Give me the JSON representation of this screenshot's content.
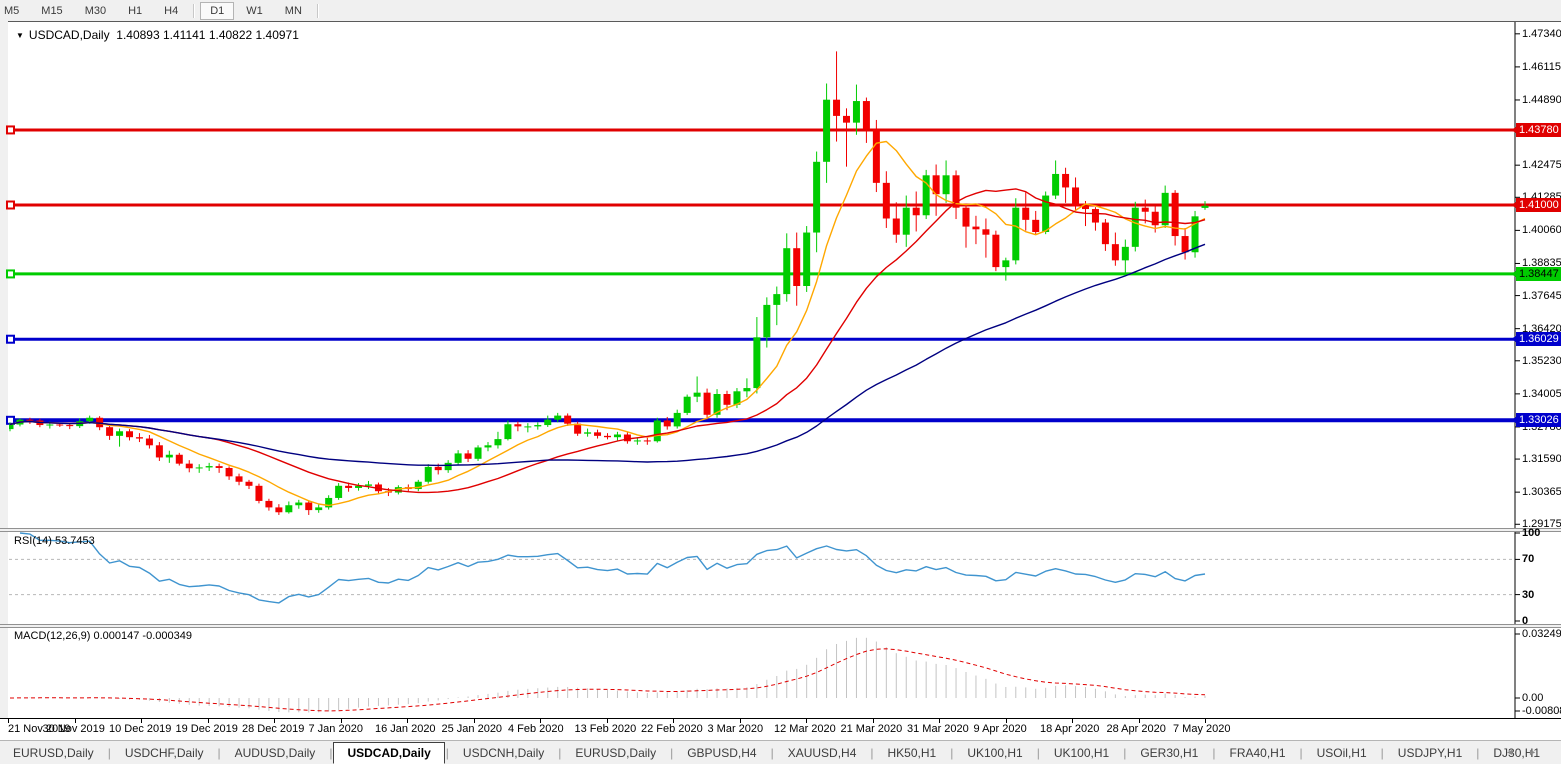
{
  "toolbar": {
    "timeframes": [
      {
        "label": "M5",
        "active": false
      },
      {
        "label": "M15",
        "active": false
      },
      {
        "label": "M30",
        "active": false
      },
      {
        "label": "H1",
        "active": false
      },
      {
        "label": "H4",
        "active": false
      },
      {
        "label": "D1",
        "active": true
      },
      {
        "label": "W1",
        "active": false
      },
      {
        "label": "MN",
        "active": false
      }
    ]
  },
  "chart": {
    "title_symbol": "USDCAD,Daily",
    "title_ohlc": "1.40893 1.41141 1.40822 1.40971",
    "dropdown_icon": "▼",
    "candle_up_color": "#00cc00",
    "candle_down_color": "#f20000",
    "ma_fast_color": "#ffa800",
    "ma_mid_color": "#e00000",
    "ma_slow_color": "#000080"
  },
  "price_axis": {
    "ticks": [
      "1.47340",
      "1.46115",
      "1.44890",
      "1.42475",
      "1.41285",
      "1.40060",
      "1.38835",
      "1.37645",
      "1.36420",
      "1.35230",
      "1.34005",
      "1.32780",
      "1.31590",
      "1.30365",
      "1.29175"
    ],
    "badges": [
      {
        "text": "1.43780",
        "value": 1.4378,
        "bg": "#e00000",
        "fg": "#ffffff"
      },
      {
        "text": "1.41000",
        "value": 1.41,
        "bg": "#e00000",
        "fg": "#ffffff"
      },
      {
        "text": "1.38447",
        "value": 1.38447,
        "bg": "#00cc00",
        "fg": "#000000"
      },
      {
        "text": "1.36029",
        "value": 1.36029,
        "bg": "#0000cc",
        "fg": "#ffffff"
      },
      {
        "text": "1.33026",
        "value": 1.33026,
        "bg": "#0000cc",
        "fg": "#ffffff"
      }
    ]
  },
  "rsi_pane": {
    "label": "RSI(14) 53.7453",
    "level_labels": [
      "100",
      "70",
      "30",
      "0"
    ],
    "line_color": "#3f94cf"
  },
  "macd_pane": {
    "label": "MACD(12,26,9) 0.000147 -0.000349",
    "axis_labels": [
      "0.032493",
      "0.00",
      "-0.00808"
    ],
    "bar_color": "#c4c4c4",
    "signal_color": "#e00000"
  },
  "date_axis": {
    "labels": [
      "21 Nov 2019",
      "30 Nov 2019",
      "10 Dec 2019",
      "19 Dec 2019",
      "28 Dec 2019",
      "7 Jan 2020",
      "16 Jan 2020",
      "25 Jan 2020",
      "4 Feb 2020",
      "13 Feb 2020",
      "22 Feb 2020",
      "3 Mar 2020",
      "12 Mar 2020",
      "21 Mar 2020",
      "31 Mar 2020",
      "9 Apr 2020",
      "18 Apr 2020",
      "28 Apr 2020",
      "7 May 2020"
    ]
  },
  "tabs": {
    "items": [
      "EURUSD,Daily",
      "USDCHF,Daily",
      "AUDUSD,Daily",
      "USDCAD,Daily",
      "USDCNH,Daily",
      "EURUSD,Daily",
      "GBPUSD,H4",
      "XAUUSD,H4",
      "HK50,H1",
      "UK100,H1",
      "UK100,H1",
      "GER30,H1",
      "FRA40,H1",
      "USOil,H1",
      "USDJPY,H1",
      "DJ30,H1"
    ],
    "active_index": 3,
    "scroll_left_icon": "◄",
    "scroll_right_icon": "►"
  },
  "chart_data": {
    "type": "candlestick",
    "symbol": "USDCAD",
    "timeframe": "Daily",
    "current": {
      "open": 1.40893,
      "high": 1.41141,
      "low": 1.40822,
      "close": 1.40971
    },
    "y_axis_range": [
      1.29175,
      1.4734
    ],
    "horizontal_levels": [
      {
        "value": 1.4378,
        "color": "#e00000",
        "width": 3
      },
      {
        "value": 1.41,
        "color": "#e00000",
        "width": 3
      },
      {
        "value": 1.38447,
        "color": "#00cc00",
        "width": 3
      },
      {
        "value": 1.36029,
        "color": "#0000cc",
        "width": 3
      },
      {
        "value": 1.33026,
        "color": "#0000cc",
        "width": 4
      }
    ],
    "overlays": [
      {
        "name": "sma-fast",
        "period": 8,
        "color": "#ffa800"
      },
      {
        "name": "sma-mid",
        "period": 21,
        "color": "#e00000"
      },
      {
        "name": "sma-slow",
        "period": 55,
        "color": "#000080"
      }
    ],
    "indicators": [
      {
        "name": "RSI",
        "period": 14,
        "last_value": 53.7453,
        "levels": [
          30,
          70
        ],
        "range": [
          0,
          100
        ]
      },
      {
        "name": "MACD",
        "fast": 12,
        "slow": 26,
        "signal": 9,
        "last_main": 0.000147,
        "last_signal": -0.000349,
        "axis_max": 0.032493,
        "axis_min": -0.00808
      }
    ],
    "dates": [
      "21 Nov 2019",
      "22 Nov 2019",
      "25 Nov 2019",
      "26 Nov 2019",
      "27 Nov 2019",
      "28 Nov 2019",
      "29 Nov 2019",
      "2 Dec 2019",
      "3 Dec 2019",
      "4 Dec 2019",
      "5 Dec 2019",
      "6 Dec 2019",
      "9 Dec 2019",
      "10 Dec 2019",
      "11 Dec 2019",
      "12 Dec 2019",
      "13 Dec 2019",
      "16 Dec 2019",
      "17 Dec 2019",
      "18 Dec 2019",
      "19 Dec 2019",
      "20 Dec 2019",
      "23 Dec 2019",
      "24 Dec 2019",
      "26 Dec 2019",
      "27 Dec 2019",
      "30 Dec 2019",
      "31 Dec 2019",
      "2 Jan 2020",
      "3 Jan 2020",
      "6 Jan 2020",
      "7 Jan 2020",
      "8 Jan 2020",
      "9 Jan 2020",
      "10 Jan 2020",
      "13 Jan 2020",
      "14 Jan 2020",
      "15 Jan 2020",
      "16 Jan 2020",
      "17 Jan 2020",
      "20 Jan 2020",
      "21 Jan 2020",
      "22 Jan 2020",
      "23 Jan 2020",
      "24 Jan 2020",
      "27 Jan 2020",
      "28 Jan 2020",
      "29 Jan 2020",
      "30 Jan 2020",
      "31 Jan 2020",
      "3 Feb 2020",
      "4 Feb 2020",
      "5 Feb 2020",
      "6 Feb 2020",
      "7 Feb 2020",
      "10 Feb 2020",
      "11 Feb 2020",
      "12 Feb 2020",
      "13 Feb 2020",
      "14 Feb 2020",
      "17 Feb 2020",
      "18 Feb 2020",
      "19 Feb 2020",
      "20 Feb 2020",
      "21 Feb 2020",
      "24 Feb 2020",
      "25 Feb 2020",
      "26 Feb 2020",
      "27 Feb 2020",
      "28 Feb 2020",
      "2 Mar 2020",
      "3 Mar 2020",
      "4 Mar 2020",
      "5 Mar 2020",
      "6 Mar 2020",
      "9 Mar 2020",
      "10 Mar 2020",
      "11 Mar 2020",
      "12 Mar 2020",
      "13 Mar 2020",
      "16 Mar 2020",
      "17 Mar 2020",
      "18 Mar 2020",
      "19 Mar 2020",
      "20 Mar 2020",
      "23 Mar 2020",
      "24 Mar 2020",
      "25 Mar 2020",
      "26 Mar 2020",
      "27 Mar 2020",
      "30 Mar 2020",
      "31 Mar 2020",
      "1 Apr 2020",
      "2 Apr 2020",
      "3 Apr 2020",
      "6 Apr 2020",
      "7 Apr 2020",
      "8 Apr 2020",
      "9 Apr 2020",
      "13 Apr 2020",
      "14 Apr 2020",
      "15 Apr 2020",
      "16 Apr 2020",
      "17 Apr 2020",
      "20 Apr 2020",
      "21 Apr 2020",
      "22 Apr 2020",
      "23 Apr 2020",
      "24 Apr 2020",
      "27 Apr 2020",
      "28 Apr 2020",
      "29 Apr 2020",
      "30 Apr 2020",
      "1 May 2020",
      "4 May 2020",
      "5 May 2020",
      "6 May 2020",
      "7 May 2020",
      "8 May 2020",
      "11 May 2020",
      "12 May 2020"
    ],
    "ohlc": [
      [
        1.327,
        1.3295,
        1.3262,
        1.3287
      ],
      [
        1.3287,
        1.331,
        1.328,
        1.3305
      ],
      [
        1.3305,
        1.3312,
        1.3289,
        1.3302
      ],
      [
        1.3302,
        1.3308,
        1.3277,
        1.3285
      ],
      [
        1.3285,
        1.3298,
        1.3272,
        1.3287
      ],
      [
        1.3287,
        1.3294,
        1.3278,
        1.3285
      ],
      [
        1.3285,
        1.3293,
        1.327,
        1.3281
      ],
      [
        1.3281,
        1.331,
        1.3274,
        1.3299
      ],
      [
        1.3299,
        1.332,
        1.329,
        1.3312
      ],
      [
        1.3312,
        1.3318,
        1.3266,
        1.3277
      ],
      [
        1.3277,
        1.3288,
        1.323,
        1.3245
      ],
      [
        1.3245,
        1.3272,
        1.3205,
        1.3262
      ],
      [
        1.3262,
        1.327,
        1.3228,
        1.324
      ],
      [
        1.324,
        1.3255,
        1.3222,
        1.3235
      ],
      [
        1.3235,
        1.3248,
        1.3198,
        1.321
      ],
      [
        1.321,
        1.3222,
        1.3152,
        1.3165
      ],
      [
        1.3165,
        1.319,
        1.3145,
        1.3175
      ],
      [
        1.3175,
        1.3182,
        1.3135,
        1.3142
      ],
      [
        1.3142,
        1.3155,
        1.311,
        1.3125
      ],
      [
        1.3125,
        1.314,
        1.3108,
        1.3128
      ],
      [
        1.3128,
        1.3145,
        1.3115,
        1.3133
      ],
      [
        1.3133,
        1.3142,
        1.3108,
        1.3126
      ],
      [
        1.3126,
        1.3132,
        1.3082,
        1.3095
      ],
      [
        1.3095,
        1.3105,
        1.3062,
        1.3075
      ],
      [
        1.3075,
        1.3082,
        1.3048,
        1.306
      ],
      [
        1.306,
        1.3068,
        1.2995,
        1.3004
      ],
      [
        1.3004,
        1.3012,
        1.2968,
        1.298
      ],
      [
        1.298,
        1.2992,
        1.2952,
        1.2962
      ],
      [
        1.2962,
        1.3002,
        1.2957,
        1.2988
      ],
      [
        1.2988,
        1.3008,
        1.2975,
        1.2998
      ],
      [
        1.2998,
        1.3005,
        1.2952,
        1.297
      ],
      [
        1.297,
        1.2994,
        1.296,
        1.298
      ],
      [
        1.298,
        1.3025,
        1.2972,
        1.3015
      ],
      [
        1.3015,
        1.307,
        1.3008,
        1.306
      ],
      [
        1.306,
        1.3072,
        1.3038,
        1.3052
      ],
      [
        1.3052,
        1.307,
        1.3042,
        1.306
      ],
      [
        1.306,
        1.3078,
        1.3048,
        1.3065
      ],
      [
        1.3065,
        1.3072,
        1.3028,
        1.304
      ],
      [
        1.304,
        1.3052,
        1.3022,
        1.3035
      ],
      [
        1.3035,
        1.3062,
        1.3028,
        1.3055
      ],
      [
        1.3055,
        1.3065,
        1.3038,
        1.3048
      ],
      [
        1.3048,
        1.3082,
        1.304,
        1.3075
      ],
      [
        1.3075,
        1.314,
        1.3068,
        1.313
      ],
      [
        1.313,
        1.3142,
        1.3102,
        1.3118
      ],
      [
        1.3118,
        1.3155,
        1.3108,
        1.3145
      ],
      [
        1.3145,
        1.3192,
        1.3138,
        1.318
      ],
      [
        1.318,
        1.3192,
        1.3148,
        1.316
      ],
      [
        1.316,
        1.321,
        1.3152,
        1.3202
      ],
      [
        1.3202,
        1.3222,
        1.3188,
        1.321
      ],
      [
        1.321,
        1.326,
        1.3198,
        1.3233
      ],
      [
        1.3233,
        1.3302,
        1.3228,
        1.3288
      ],
      [
        1.3288,
        1.3298,
        1.3262,
        1.328
      ],
      [
        1.328,
        1.3292,
        1.3258,
        1.328
      ],
      [
        1.328,
        1.3295,
        1.3268,
        1.3285
      ],
      [
        1.3285,
        1.332,
        1.3278,
        1.3305
      ],
      [
        1.3305,
        1.333,
        1.3295,
        1.332
      ],
      [
        1.332,
        1.3328,
        1.3282,
        1.329
      ],
      [
        1.329,
        1.3298,
        1.3245,
        1.3253
      ],
      [
        1.3253,
        1.3272,
        1.3242,
        1.3258
      ],
      [
        1.3258,
        1.3268,
        1.3235,
        1.3245
      ],
      [
        1.3245,
        1.3255,
        1.3232,
        1.324
      ],
      [
        1.324,
        1.326,
        1.3228,
        1.325
      ],
      [
        1.325,
        1.3258,
        1.3216,
        1.3225
      ],
      [
        1.3225,
        1.324,
        1.3212,
        1.3228
      ],
      [
        1.3228,
        1.3238,
        1.3212,
        1.3225
      ],
      [
        1.3225,
        1.3312,
        1.322,
        1.3302
      ],
      [
        1.3302,
        1.3315,
        1.3268,
        1.328
      ],
      [
        1.328,
        1.3342,
        1.3272,
        1.333
      ],
      [
        1.333,
        1.3398,
        1.3322,
        1.339
      ],
      [
        1.339,
        1.3465,
        1.337,
        1.3405
      ],
      [
        1.3405,
        1.342,
        1.3305,
        1.3323
      ],
      [
        1.3323,
        1.3418,
        1.3312,
        1.34
      ],
      [
        1.34,
        1.3412,
        1.334,
        1.336
      ],
      [
        1.336,
        1.3422,
        1.3348,
        1.341
      ],
      [
        1.341,
        1.3458,
        1.3388,
        1.3422
      ],
      [
        1.3422,
        1.3685,
        1.3402,
        1.361
      ],
      [
        1.361,
        1.3758,
        1.3572,
        1.373
      ],
      [
        1.373,
        1.3798,
        1.3655,
        1.377
      ],
      [
        1.377,
        1.3995,
        1.3742,
        1.394
      ],
      [
        1.394,
        1.3998,
        1.3727,
        1.38
      ],
      [
        1.38,
        1.4022,
        1.3778,
        1.3998
      ],
      [
        1.3998,
        1.4298,
        1.3925,
        1.426
      ],
      [
        1.426,
        1.455,
        1.4182,
        1.449
      ],
      [
        1.449,
        1.4669,
        1.4335,
        1.443
      ],
      [
        1.443,
        1.4458,
        1.4242,
        1.4405
      ],
      [
        1.4405,
        1.4546,
        1.436,
        1.4485
      ],
      [
        1.4485,
        1.4498,
        1.433,
        1.438
      ],
      [
        1.438,
        1.4415,
        1.4148,
        1.4182
      ],
      [
        1.4182,
        1.4225,
        1.4015,
        1.405
      ],
      [
        1.405,
        1.411,
        1.396,
        1.399
      ],
      [
        1.399,
        1.4135,
        1.3945,
        1.409
      ],
      [
        1.409,
        1.415,
        1.4002,
        1.4062
      ],
      [
        1.4062,
        1.423,
        1.4048,
        1.421
      ],
      [
        1.421,
        1.425,
        1.406,
        1.414
      ],
      [
        1.414,
        1.4265,
        1.4108,
        1.421
      ],
      [
        1.421,
        1.4228,
        1.4048,
        1.409
      ],
      [
        1.409,
        1.4105,
        1.3942,
        1.402
      ],
      [
        1.402,
        1.406,
        1.3955,
        1.401
      ],
      [
        1.401,
        1.405,
        1.3905,
        1.399
      ],
      [
        1.399,
        1.4005,
        1.3855,
        1.387
      ],
      [
        1.387,
        1.3905,
        1.382,
        1.3895
      ],
      [
        1.3895,
        1.4125,
        1.388,
        1.409
      ],
      [
        1.409,
        1.4148,
        1.4005,
        1.4045
      ],
      [
        1.4045,
        1.4078,
        1.399,
        1.4
      ],
      [
        1.4,
        1.415,
        1.3992,
        1.4135
      ],
      [
        1.4135,
        1.4265,
        1.4122,
        1.4215
      ],
      [
        1.4215,
        1.4238,
        1.4108,
        1.4165
      ],
      [
        1.4165,
        1.4202,
        1.4078,
        1.4095
      ],
      [
        1.4095,
        1.4115,
        1.4022,
        1.4085
      ],
      [
        1.4085,
        1.4092,
        1.4005,
        1.4035
      ],
      [
        1.4035,
        1.4048,
        1.393,
        1.3955
      ],
      [
        1.3955,
        1.3998,
        1.3875,
        1.3895
      ],
      [
        1.3895,
        1.3972,
        1.385,
        1.3945
      ],
      [
        1.3945,
        1.4112,
        1.3928,
        1.409
      ],
      [
        1.409,
        1.412,
        1.4032,
        1.4075
      ],
      [
        1.4075,
        1.4095,
        1.3998,
        1.4025
      ],
      [
        1.4025,
        1.4172,
        1.4015,
        1.4145
      ],
      [
        1.4145,
        1.4155,
        1.395,
        1.3985
      ],
      [
        1.3985,
        1.4015,
        1.3898,
        1.3925
      ],
      [
        1.3925,
        1.4078,
        1.3905,
        1.4058
      ],
      [
        1.40893,
        1.41141,
        1.40822,
        1.40971
      ]
    ]
  }
}
